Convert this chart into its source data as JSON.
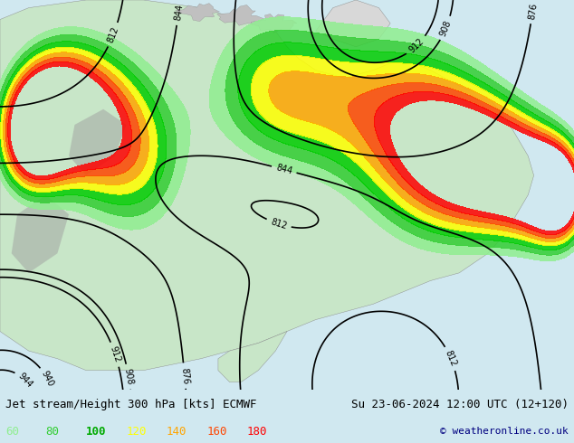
{
  "title_left": "Jet stream/Height 300 hPa [kts] ECMWF",
  "title_right": "Su 23-06-2024 12:00 UTC (12+120)",
  "copyright": "© weatheronline.co.uk",
  "legend_values": [
    60,
    80,
    100,
    120,
    140,
    160,
    180
  ],
  "legend_colors": [
    "#90ee90",
    "#32cd32",
    "#00aa00",
    "#ffff00",
    "#ffa500",
    "#ff4500",
    "#ff0000"
  ],
  "background_color": "#d0e8f0",
  "land_color": "#c8e6c8",
  "figsize": [
    6.34,
    4.9
  ],
  "dpi": 100,
  "bottom_bar_color": "#e8e8e8",
  "title_fontsize": 9,
  "legend_fontsize": 9
}
